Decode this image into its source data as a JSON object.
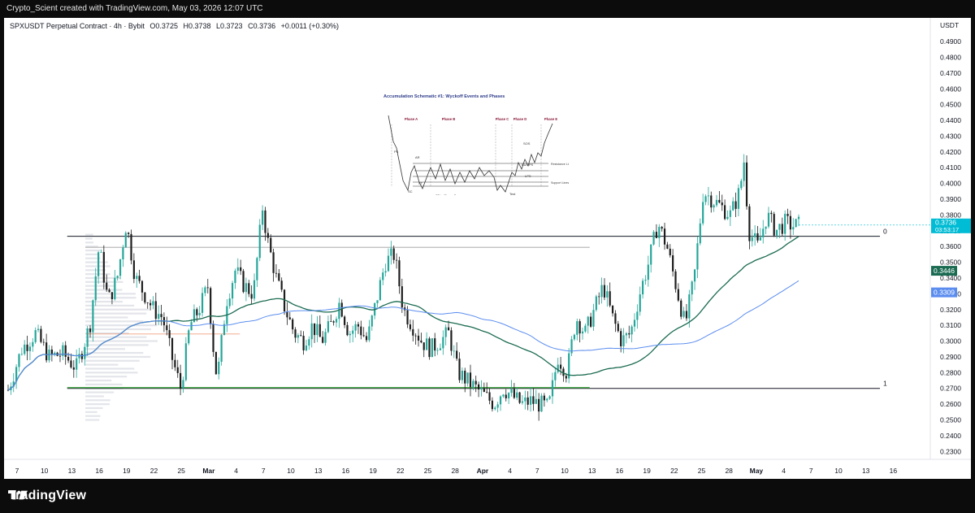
{
  "attribution": "Crypto_Scient created with TradingView.com, May 03, 2026 12:07 UTC",
  "header": {
    "symbol": "SPXUSDT Perpetual Contract · 4h · Bybit",
    "open": "O0.3725",
    "high": "H0.3738",
    "low": "L0.3723",
    "close": "C0.3736",
    "change": "+0.0011 (+0.30%)"
  },
  "currency": "USDT",
  "brand": "TradingView",
  "colors": {
    "up": "#26a69a",
    "down": "#1e1e1e",
    "price_badge": "#00bcd4",
    "ma_slow": "#1b6b52",
    "ma_fast": "#5b8def",
    "green_level": "#4caf50"
  },
  "badges": {
    "last_price": "0.3736",
    "countdown": "03:53:17",
    "ma_slow_value": "0.3446",
    "ma_fast_value": "0.3309"
  },
  "fib_labels": [
    "0",
    "1"
  ],
  "inset": {
    "title": "Accumulation Schematic #1: Wyckoff Events and Phases",
    "phases": [
      "Phase A",
      "Phase B",
      "Phase C",
      "Phase D",
      "Phase E"
    ],
    "events": [
      "PS",
      "AR",
      "SC",
      "ST",
      "ST in Phase B",
      "Spring",
      "Test",
      "LPS",
      "BU/LPS",
      "SOS"
    ],
    "line_labels": [
      "Resistance Lines",
      "Support Lines"
    ]
  },
  "chart_data": {
    "type": "candlestick",
    "ylim": [
      0.225,
      0.505
    ],
    "y_ticks": [
      "0.2300",
      "0.2400",
      "0.2500",
      "0.2600",
      "0.2700",
      "0.2800",
      "0.2900",
      "0.3000",
      "0.3100",
      "0.3200",
      "0.3300",
      "0.3400",
      "0.3500",
      "0.3600",
      "0.3700",
      "0.3800",
      "0.3900",
      "0.4000",
      "0.4100",
      "0.4200",
      "0.4300",
      "0.4400",
      "0.4500",
      "0.4600",
      "0.4700",
      "0.4800",
      "0.4900"
    ],
    "x_ticks": [
      "7",
      "10",
      "13",
      "16",
      "19",
      "22",
      "25",
      "Mar",
      "4",
      "7",
      "10",
      "13",
      "16",
      "19",
      "22",
      "25",
      "28",
      "Apr",
      "4",
      "7",
      "10",
      "13",
      "16",
      "19",
      "22",
      "25",
      "28",
      "May",
      "4",
      "7",
      "10",
      "13",
      "16"
    ],
    "levels": {
      "fib_0": 0.3665,
      "fib_1": 0.27,
      "range_top": 0.3595,
      "poc": 0.3045
    },
    "price_path": [
      [
        0,
        0.269
      ],
      [
        3,
        0.295
      ],
      [
        6,
        0.305
      ],
      [
        9,
        0.29
      ],
      [
        12,
        0.292
      ],
      [
        15,
        0.283
      ],
      [
        18,
        0.31
      ],
      [
        20,
        0.36
      ],
      [
        22,
        0.325
      ],
      [
        24,
        0.34
      ],
      [
        26,
        0.375
      ],
      [
        28,
        0.34
      ],
      [
        30,
        0.33
      ],
      [
        32,
        0.32
      ],
      [
        34,
        0.315
      ],
      [
        36,
        0.29
      ],
      [
        38,
        0.27
      ],
      [
        40,
        0.31
      ],
      [
        42,
        0.32
      ],
      [
        44,
        0.335
      ],
      [
        45,
        0.3
      ],
      [
        46,
        0.275
      ],
      [
        48,
        0.325
      ],
      [
        50,
        0.345
      ],
      [
        52,
        0.335
      ],
      [
        54,
        0.33
      ],
      [
        56,
        0.385
      ],
      [
        57,
        0.365
      ],
      [
        59,
        0.34
      ],
      [
        61,
        0.32
      ],
      [
        63,
        0.305
      ],
      [
        65,
        0.3
      ],
      [
        67,
        0.31
      ],
      [
        69,
        0.3
      ],
      [
        71,
        0.31
      ],
      [
        73,
        0.325
      ],
      [
        75,
        0.305
      ],
      [
        77,
        0.31
      ],
      [
        79,
        0.3
      ],
      [
        81,
        0.325
      ],
      [
        83,
        0.35
      ],
      [
        85,
        0.355
      ],
      [
        87,
        0.32
      ],
      [
        89,
        0.31
      ],
      [
        91,
        0.3
      ],
      [
        93,
        0.295
      ],
      [
        95,
        0.3
      ],
      [
        97,
        0.305
      ],
      [
        99,
        0.28
      ],
      [
        101,
        0.275
      ],
      [
        103,
        0.27
      ],
      [
        105,
        0.265
      ],
      [
        107,
        0.26
      ],
      [
        109,
        0.27
      ],
      [
        111,
        0.265
      ],
      [
        113,
        0.26
      ],
      [
        115,
        0.262
      ],
      [
        117,
        0.26
      ],
      [
        119,
        0.258
      ],
      [
        121,
        0.29
      ],
      [
        123,
        0.28
      ],
      [
        125,
        0.315
      ],
      [
        127,
        0.305
      ],
      [
        129,
        0.32
      ],
      [
        131,
        0.335
      ],
      [
        133,
        0.315
      ],
      [
        135,
        0.3
      ],
      [
        137,
        0.305
      ],
      [
        139,
        0.33
      ],
      [
        141,
        0.35
      ],
      [
        143,
        0.375
      ],
      [
        145,
        0.36
      ],
      [
        147,
        0.335
      ],
      [
        149,
        0.31
      ],
      [
        151,
        0.34
      ],
      [
        153,
        0.395
      ],
      [
        155,
        0.39
      ],
      [
        157,
        0.385
      ],
      [
        159,
        0.38
      ],
      [
        161,
        0.395
      ],
      [
        162,
        0.415
      ],
      [
        163,
        0.37
      ],
      [
        165,
        0.36
      ],
      [
        167,
        0.38
      ],
      [
        169,
        0.37
      ],
      [
        171,
        0.375
      ],
      [
        173,
        0.373
      ],
      [
        174,
        0.3736
      ]
    ],
    "ma_slow_value": 0.3446,
    "ma_fast_value": 0.3309
  }
}
